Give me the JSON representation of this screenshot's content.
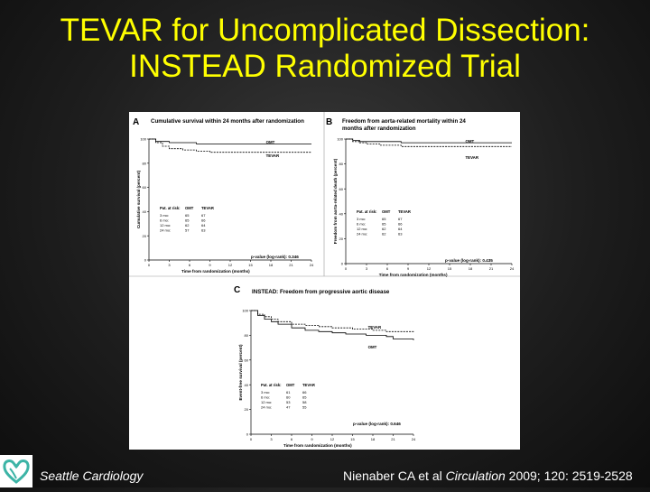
{
  "slide": {
    "title_line1": "TEVAR for Uncomplicated Dissection:",
    "title_line2": "INSTEAD Randomized Trial",
    "footer_left": "Seattle Cardiology",
    "citation_prefix": "Nienaber CA et al ",
    "citation_journal": "Circulation",
    "citation_suffix": " 2009; 120: 2519-2528"
  },
  "colors": {
    "title": "#ffff00",
    "text": "#ffffff",
    "logo": "#3cb4a6"
  },
  "chart_data": [
    {
      "type": "line",
      "panel": "A",
      "title": "Cumulative survival within 24 months after randomization",
      "xlabel": "Time from randomization (months)",
      "ylabel": "Cumulative survival (percent)",
      "xlim": [
        0,
        24
      ],
      "ylim": [
        0,
        100
      ],
      "xticks": [
        "0",
        "3",
        "6",
        "9",
        "12",
        "15",
        "18",
        "21",
        "24"
      ],
      "yticks": [
        "0",
        "20",
        "40",
        "60",
        "80",
        "100"
      ],
      "series": [
        {
          "name": "OMT",
          "style": "solid",
          "points": [
            [
              0,
              100
            ],
            [
              1,
              98
            ],
            [
              3,
              97
            ],
            [
              5,
              97
            ],
            [
              7,
              96
            ],
            [
              9,
              96
            ],
            [
              12,
              96
            ],
            [
              18,
              96
            ],
            [
              24,
              96
            ]
          ]
        },
        {
          "name": "TEVAR",
          "style": "dashed",
          "points": [
            [
              0,
              100
            ],
            [
              1,
              97
            ],
            [
              2,
              94
            ],
            [
              3,
              92
            ],
            [
              5,
              91
            ],
            [
              7,
              90
            ],
            [
              9,
              89
            ],
            [
              12,
              89
            ],
            [
              18,
              89
            ],
            [
              24,
              89
            ]
          ]
        }
      ],
      "at_risk": {
        "header": [
          "Pat. at risk:",
          "OMT",
          "TEVAR"
        ],
        "rows": [
          [
            "3 mo:",
            "65",
            "67"
          ],
          [
            "6 mo:",
            "65",
            "66"
          ],
          [
            "12 mo:",
            "62",
            "64"
          ],
          [
            "24 mo:",
            "57",
            "63"
          ]
        ]
      },
      "annotation": "p-value (log-rank): 0.346"
    },
    {
      "type": "line",
      "panel": "B",
      "title_line1": "Freedom from aorta-related mortality within 24",
      "title_line2": "months after randomization",
      "xlabel": "Time from randomization (months)",
      "ylabel": "Freedom from aorta-related death (percent)",
      "xlim": [
        0,
        24
      ],
      "ylim": [
        0,
        100
      ],
      "xticks": [
        "0",
        "3",
        "6",
        "9",
        "12",
        "15",
        "18",
        "21",
        "24"
      ],
      "yticks": [
        "0",
        "20",
        "40",
        "60",
        "80",
        "100"
      ],
      "series": [
        {
          "name": "OMT",
          "style": "solid",
          "points": [
            [
              0,
              100
            ],
            [
              1,
              99
            ],
            [
              2,
              98
            ],
            [
              4,
              98
            ],
            [
              8,
              97
            ],
            [
              12,
              97
            ],
            [
              18,
              97
            ],
            [
              24,
              97
            ]
          ]
        },
        {
          "name": "TEVAR",
          "style": "dashed",
          "points": [
            [
              0,
              100
            ],
            [
              1,
              98
            ],
            [
              2,
              97
            ],
            [
              3,
              96
            ],
            [
              5,
              95
            ],
            [
              8,
              94
            ],
            [
              12,
              94
            ],
            [
              18,
              94
            ],
            [
              24,
              94
            ]
          ]
        }
      ],
      "at_risk": {
        "header": [
          "Pat. at risk:",
          "OMT",
          "TEVAR"
        ],
        "rows": [
          [
            "3 mo:",
            "65",
            "67"
          ],
          [
            "6 mo:",
            "65",
            "66"
          ],
          [
            "12 mo:",
            "62",
            "64"
          ],
          [
            "24 mo:",
            "62",
            "63"
          ]
        ]
      },
      "annotation": "p-value (log-rank): 0.435"
    },
    {
      "type": "line",
      "panel": "C",
      "title": "INSTEAD: Freedom from progressive aortic disease",
      "xlabel": "Time from randomization (months)",
      "ylabel": "Event-free survival (percent)",
      "xlim": [
        0,
        24
      ],
      "ylim": [
        0,
        100
      ],
      "xticks": [
        "0",
        "3",
        "6",
        "9",
        "12",
        "15",
        "18",
        "21",
        "24"
      ],
      "yticks": [
        "0",
        "20",
        "40",
        "60",
        "80",
        "100"
      ],
      "series": [
        {
          "name": "TEVAR",
          "style": "dashed",
          "points": [
            [
              0,
              100
            ],
            [
              1,
              97
            ],
            [
              2,
              95
            ],
            [
              3,
              93
            ],
            [
              4,
              91
            ],
            [
              6,
              89
            ],
            [
              8,
              88
            ],
            [
              10,
              87
            ],
            [
              12,
              86
            ],
            [
              15,
              85
            ],
            [
              18,
              84
            ],
            [
              20,
              83
            ],
            [
              21,
              83
            ],
            [
              24,
              82
            ]
          ]
        },
        {
          "name": "OMT",
          "style": "solid",
          "points": [
            [
              0,
              100
            ],
            [
              1,
              96
            ],
            [
              2,
              93
            ],
            [
              3,
              91
            ],
            [
              4,
              89
            ],
            [
              6,
              86
            ],
            [
              8,
              84
            ],
            [
              10,
              83
            ],
            [
              12,
              82
            ],
            [
              14,
              81
            ],
            [
              17,
              80
            ],
            [
              19,
              80
            ],
            [
              20,
              79
            ],
            [
              21,
              77
            ],
            [
              22,
              77
            ],
            [
              24,
              76
            ]
          ]
        }
      ],
      "at_risk": {
        "header": [
          "Pat. at risk:",
          "OMT",
          "TEVAR"
        ],
        "rows": [
          [
            "3 mo:",
            "61",
            "66"
          ],
          [
            "6 mo:",
            "60",
            "65"
          ],
          [
            "12 mo:",
            "53",
            "58"
          ],
          [
            "24 mo:",
            "47",
            "55"
          ]
        ]
      },
      "annotation": "p-value (log-rank): 0.646"
    }
  ]
}
